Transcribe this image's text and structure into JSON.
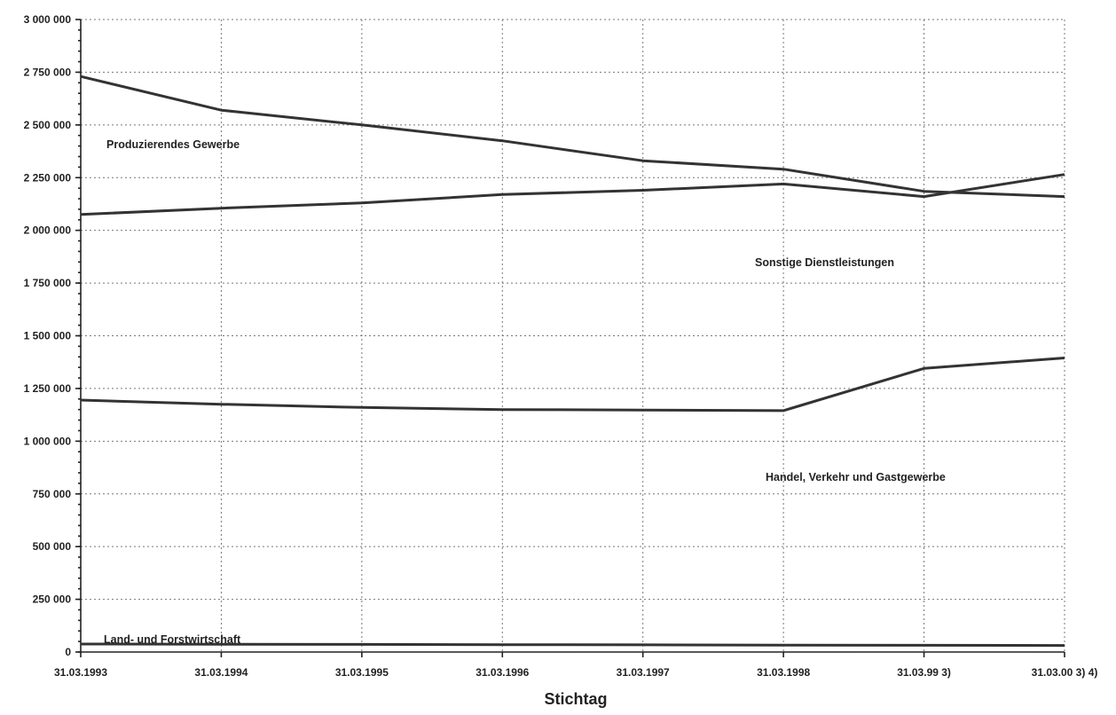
{
  "chart_data": {
    "type": "line",
    "title": "",
    "xlabel": "Stichtag",
    "ylabel": "",
    "categories": [
      "31.03.1993",
      "31.03.1994",
      "31.03.1995",
      "31.03.1996",
      "31.03.1997",
      "31.03.1998",
      "31.03.99 3)",
      "31.03.00 3) 4)"
    ],
    "ylim": [
      0,
      3000000
    ],
    "yticks": [
      0,
      250000,
      500000,
      750000,
      1000000,
      1250000,
      1500000,
      1750000,
      2000000,
      2250000,
      2500000,
      2750000,
      3000000
    ],
    "ytick_labels": [
      "0",
      "250 000",
      "500 000",
      "750 000",
      "1 000 000",
      "1 250 000",
      "1 500 000",
      "1 750 000",
      "2 000 000",
      "2 250 000",
      "2 500 000",
      "2 750 000",
      "3 000 000"
    ],
    "grid": true,
    "series": [
      {
        "name": "Produzierendes Gewerbe",
        "values": [
          2730000,
          2570000,
          2500000,
          2425000,
          2330000,
          2290000,
          2185000,
          2160000
        ]
      },
      {
        "name": "Sonstige Dienstleistungen",
        "values": [
          2075000,
          2105000,
          2130000,
          2170000,
          2190000,
          2220000,
          2160000,
          2265000
        ]
      },
      {
        "name": "Handel, Verkehr und Gastgewerbe",
        "values": [
          1195000,
          1175000,
          1160000,
          1150000,
          1148000,
          1145000,
          1345000,
          1395000
        ]
      },
      {
        "name": "Land- und Forstwirtschaft",
        "values": [
          38000,
          37000,
          36000,
          35000,
          34000,
          33000,
          32000,
          31000
        ]
      }
    ]
  }
}
